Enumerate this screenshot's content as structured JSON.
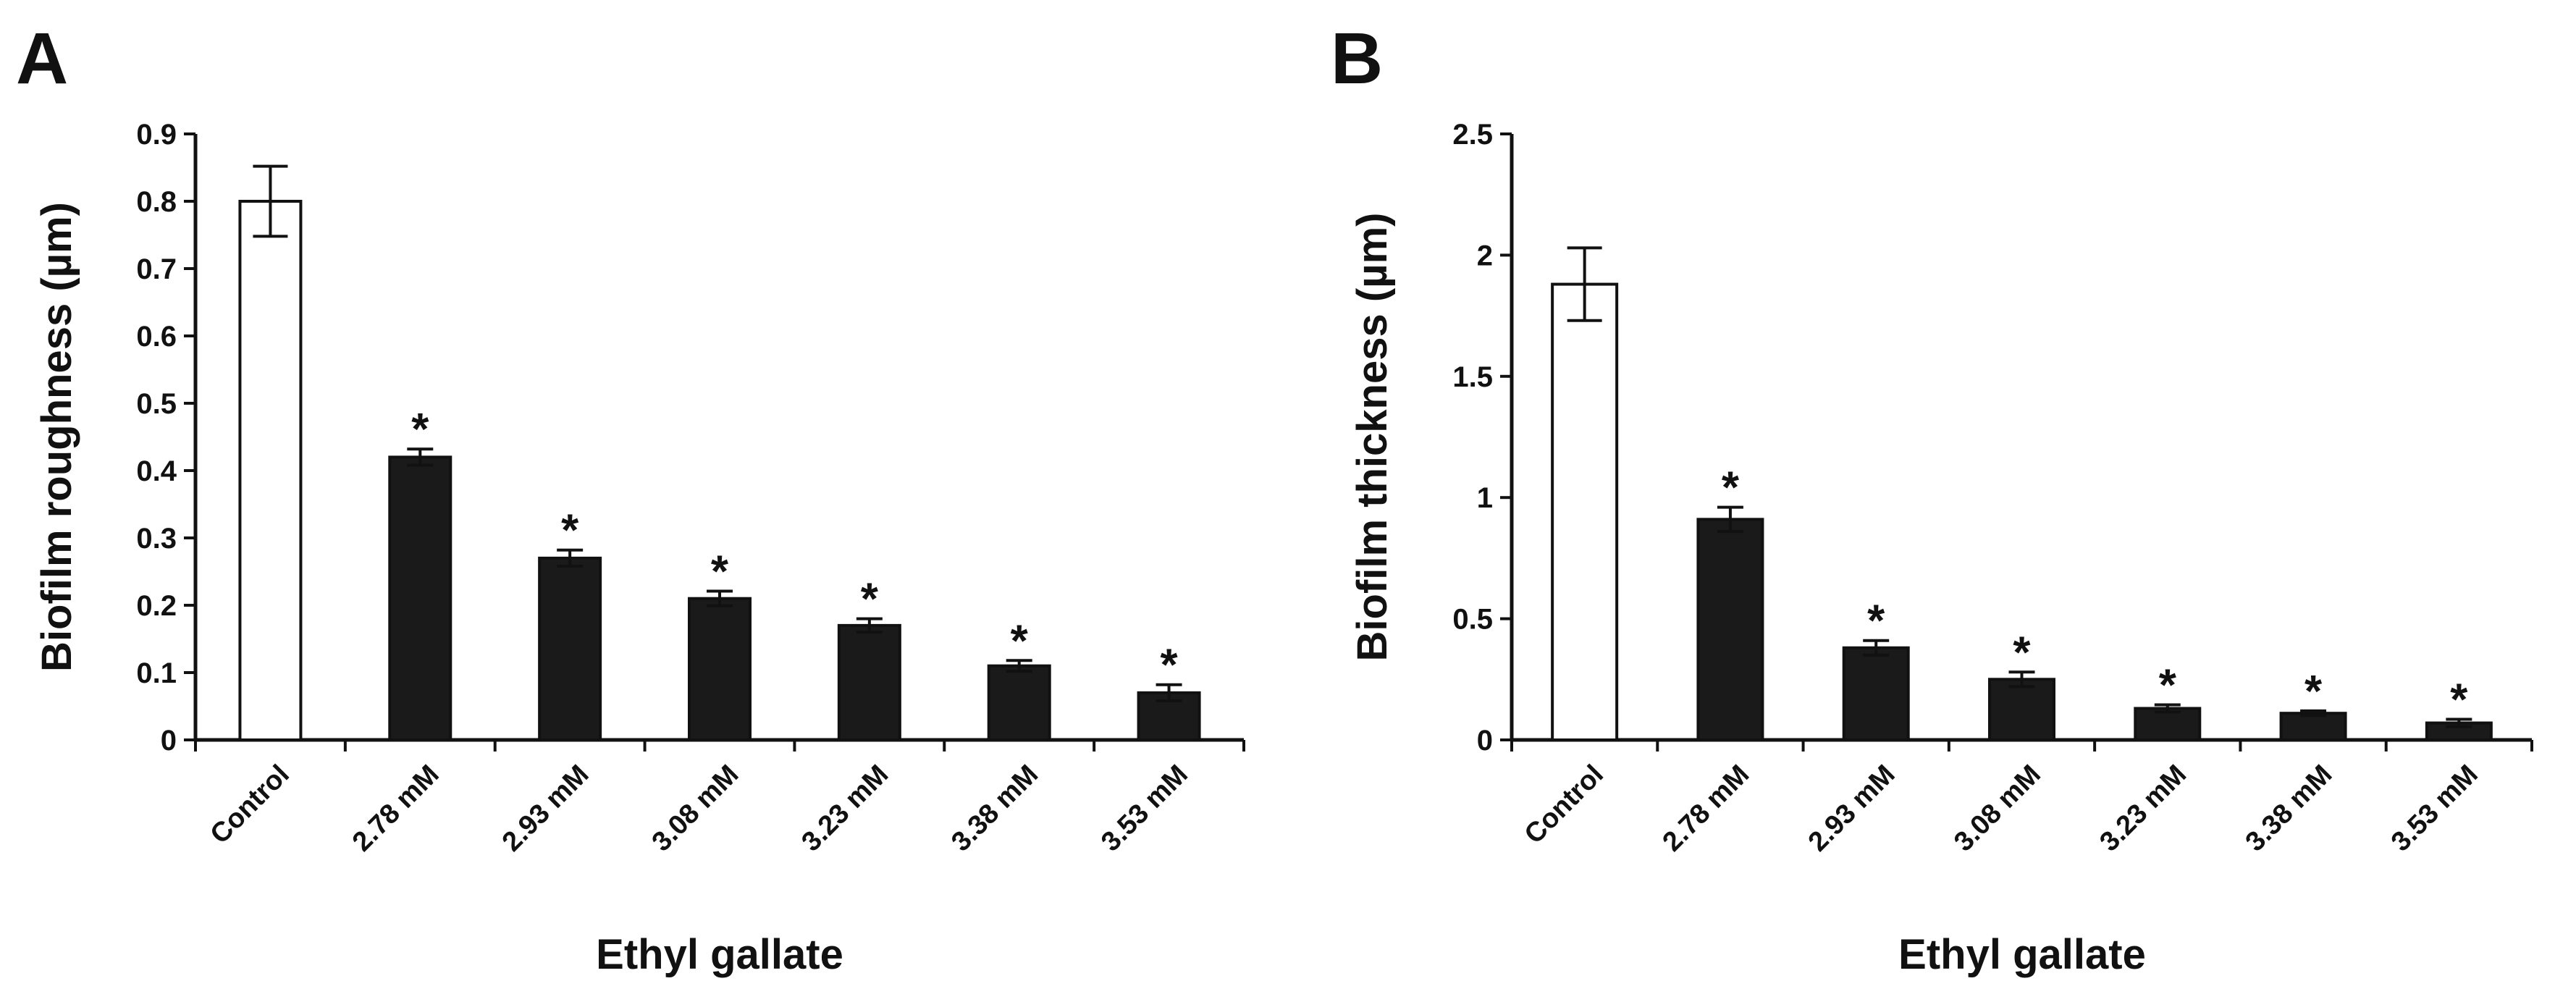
{
  "chart_data": [
    {
      "panel": "A",
      "type": "bar",
      "title": "",
      "xlabel": "Ethyl gallate",
      "ylabel": "Biofilm roughness (µm)",
      "ylim": [
        0,
        0.9
      ],
      "yticks": [
        "0",
        "0.1",
        "0.2",
        "0.3",
        "0.4",
        "0.5",
        "0.6",
        "0.7",
        "0.8",
        "0.9"
      ],
      "categories": [
        "Control",
        "2.78 mM",
        "2.93 mM",
        "3.08 mM",
        "3.23 mM",
        "3.38 mM",
        "3.53 mM"
      ],
      "values": [
        0.8,
        0.42,
        0.27,
        0.21,
        0.17,
        0.11,
        0.07
      ],
      "errors": [
        0.052,
        0.012,
        0.012,
        0.011,
        0.01,
        0.008,
        0.012
      ],
      "significance": [
        "",
        "*",
        "*",
        "*",
        "*",
        "*",
        "*"
      ],
      "fill_colors": [
        "#ffffff",
        "#1a1a1a",
        "#1a1a1a",
        "#1a1a1a",
        "#1a1a1a",
        "#1a1a1a",
        "#1a1a1a"
      ]
    },
    {
      "panel": "B",
      "type": "bar",
      "title": "",
      "xlabel": "Ethyl gallate",
      "ylabel": "Biofilm thickness (µm)",
      "ylim": [
        0,
        2.5
      ],
      "yticks": [
        "0",
        "0.5",
        "1",
        "1.5",
        "2",
        "2.5"
      ],
      "categories": [
        "Control",
        "2.78 mM",
        "2.93 mM",
        "3.08 mM",
        "3.23 mM",
        "3.38 mM",
        "3.53 mM"
      ],
      "values": [
        1.88,
        0.91,
        0.38,
        0.25,
        0.13,
        0.11,
        0.07
      ],
      "errors": [
        0.15,
        0.05,
        0.03,
        0.03,
        0.015,
        0.01,
        0.015
      ],
      "significance": [
        "",
        "*",
        "*",
        "*",
        "*",
        "*",
        "*"
      ],
      "fill_colors": [
        "#ffffff",
        "#1a1a1a",
        "#1a1a1a",
        "#1a1a1a",
        "#1a1a1a",
        "#1a1a1a",
        "#1a1a1a"
      ]
    }
  ]
}
